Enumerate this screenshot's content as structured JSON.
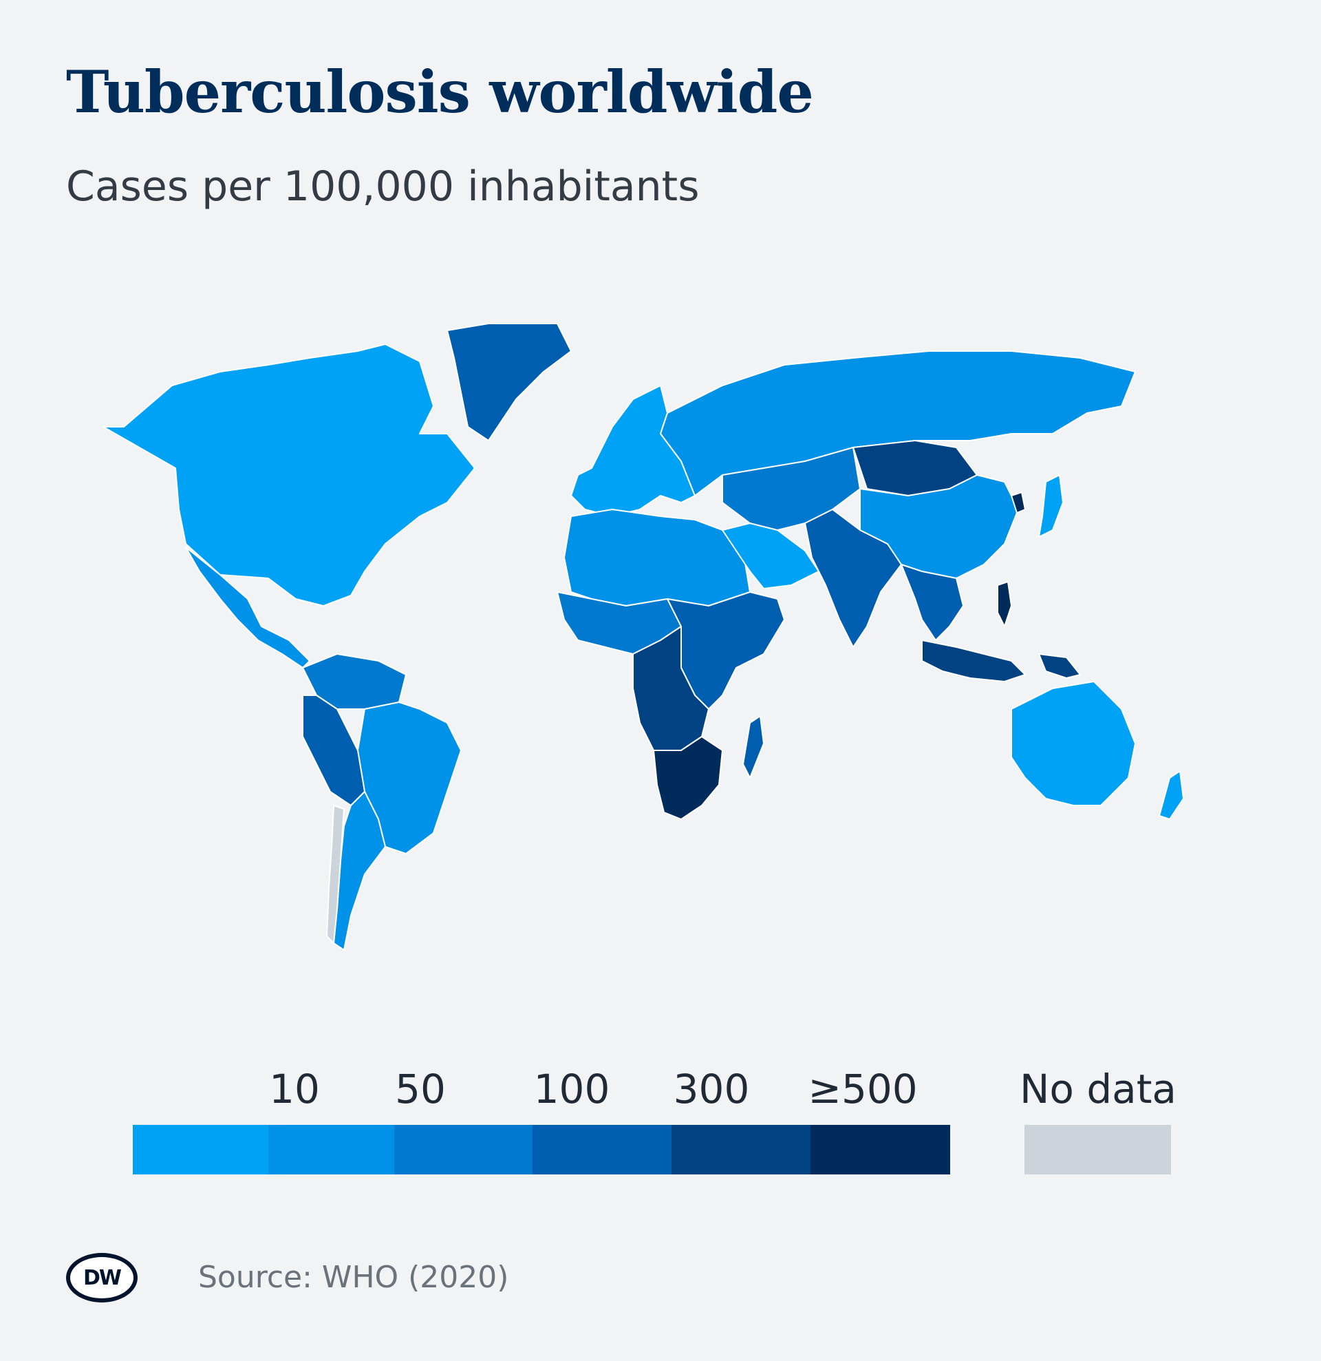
{
  "header": {
    "title": "Tuberculosis worldwide",
    "subtitle": "Cases per 100,000 inhabitants"
  },
  "legend": {
    "thresholds": [
      "10",
      "50",
      "100",
      "300",
      "≥500"
    ],
    "no_data_label": "No data",
    "colors": [
      "#00a2f5",
      "#0091e8",
      "#0079cf",
      "#005eb0",
      "#004282",
      "#002b5a"
    ],
    "no_data_color": "#cdd3da"
  },
  "map": {
    "border_color": "#ffffff",
    "regions": [
      {
        "name": "north-america",
        "category": 0
      },
      {
        "name": "greenland",
        "category": 3
      },
      {
        "name": "mexico-central-america",
        "category": 1
      },
      {
        "name": "south-america-north",
        "category": 2
      },
      {
        "name": "brazil",
        "category": 1
      },
      {
        "name": "andes",
        "category": 3
      },
      {
        "name": "southern-cone",
        "category": 1
      },
      {
        "name": "chile-coast",
        "category": "no_data"
      },
      {
        "name": "europe",
        "category": 0
      },
      {
        "name": "russia",
        "category": 1
      },
      {
        "name": "north-africa",
        "category": 1
      },
      {
        "name": "arabia",
        "category": 0
      },
      {
        "name": "west-africa",
        "category": 2
      },
      {
        "name": "east-africa",
        "category": 3
      },
      {
        "name": "central-africa",
        "category": 4
      },
      {
        "name": "southern-africa",
        "category": 5
      },
      {
        "name": "madagascar",
        "category": 3
      },
      {
        "name": "central-asia",
        "category": 2
      },
      {
        "name": "south-asia",
        "category": 3
      },
      {
        "name": "mongolia",
        "category": 4
      },
      {
        "name": "china",
        "category": 1
      },
      {
        "name": "north-korea",
        "category": 5
      },
      {
        "name": "japan",
        "category": 0
      },
      {
        "name": "southeast-asia",
        "category": 3
      },
      {
        "name": "philippines",
        "category": 5
      },
      {
        "name": "indonesia",
        "category": 4
      },
      {
        "name": "papua-new-guinea",
        "category": 4
      },
      {
        "name": "australia",
        "category": 0
      },
      {
        "name": "new-zealand",
        "category": 0
      }
    ]
  },
  "footer": {
    "logo_text": "DW",
    "source": "Source: WHO (2020)"
  }
}
